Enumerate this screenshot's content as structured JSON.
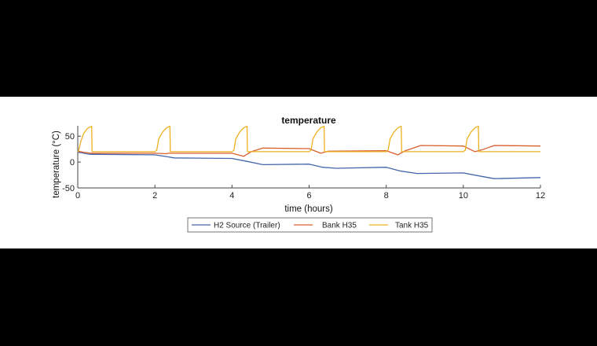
{
  "chart_data": {
    "type": "line",
    "title": "temperature",
    "xlabel": "time (hours)",
    "ylabel": "temperature (°C)",
    "xlim": [
      0,
      12
    ],
    "ylim": [
      -50,
      70
    ],
    "xticks": [
      0,
      2,
      4,
      6,
      8,
      10,
      12
    ],
    "yticks": [
      -50,
      0,
      50
    ],
    "grid": false,
    "legend_position": "bottom-center",
    "series": [
      {
        "name": "H2 Source (Trailer)",
        "color": "#4466aa",
        "points": [
          [
            0,
            19
          ],
          [
            0.1,
            18
          ],
          [
            0.3,
            15
          ],
          [
            2.0,
            14
          ],
          [
            2.35,
            10
          ],
          [
            2.5,
            8
          ],
          [
            4.0,
            7
          ],
          [
            4.35,
            2
          ],
          [
            4.8,
            -5
          ],
          [
            6.0,
            -4
          ],
          [
            6.35,
            -10
          ],
          [
            6.7,
            -12
          ],
          [
            8.0,
            -10
          ],
          [
            8.35,
            -17
          ],
          [
            8.8,
            -22
          ],
          [
            10.0,
            -21
          ],
          [
            10.35,
            -26
          ],
          [
            10.8,
            -32
          ],
          [
            12.0,
            -30
          ]
        ]
      },
      {
        "name": "Bank H35",
        "color": "#d95f2b",
        "points": [
          [
            0,
            21
          ],
          [
            0.15,
            19
          ],
          [
            0.35,
            17
          ],
          [
            2.0,
            17
          ],
          [
            2.3,
            16
          ],
          [
            2.35,
            17
          ],
          [
            4.0,
            17
          ],
          [
            4.3,
            11
          ],
          [
            4.5,
            20
          ],
          [
            4.8,
            27
          ],
          [
            6.0,
            26
          ],
          [
            6.3,
            17
          ],
          [
            6.5,
            21
          ],
          [
            8.0,
            22
          ],
          [
            8.3,
            14
          ],
          [
            8.5,
            22
          ],
          [
            8.9,
            32
          ],
          [
            10.0,
            31
          ],
          [
            10.3,
            20
          ],
          [
            10.5,
            24
          ],
          [
            10.8,
            32
          ],
          [
            12.0,
            31
          ]
        ]
      },
      {
        "name": "Tank H35",
        "color": "#edb120",
        "points": [
          [
            0,
            20
          ],
          [
            0.02,
            22
          ],
          [
            0.08,
            40
          ],
          [
            0.15,
            55
          ],
          [
            0.25,
            65
          ],
          [
            0.35,
            69
          ],
          [
            0.36,
            69
          ],
          [
            0.37,
            20
          ],
          [
            2.0,
            20
          ],
          [
            2.05,
            23
          ],
          [
            2.1,
            45
          ],
          [
            2.2,
            58
          ],
          [
            2.3,
            66
          ],
          [
            2.38,
            69
          ],
          [
            2.39,
            69
          ],
          [
            2.4,
            20
          ],
          [
            4.0,
            20
          ],
          [
            4.05,
            23
          ],
          [
            4.1,
            45
          ],
          [
            4.2,
            58
          ],
          [
            4.3,
            66
          ],
          [
            4.38,
            69
          ],
          [
            4.39,
            69
          ],
          [
            4.4,
            20
          ],
          [
            6.0,
            20
          ],
          [
            6.05,
            23
          ],
          [
            6.1,
            45
          ],
          [
            6.2,
            58
          ],
          [
            6.3,
            66
          ],
          [
            6.38,
            69
          ],
          [
            6.39,
            69
          ],
          [
            6.4,
            20
          ],
          [
            8.0,
            20
          ],
          [
            8.05,
            23
          ],
          [
            8.1,
            45
          ],
          [
            8.2,
            58
          ],
          [
            8.3,
            66
          ],
          [
            8.38,
            69
          ],
          [
            8.39,
            69
          ],
          [
            8.4,
            20
          ],
          [
            10.0,
            20
          ],
          [
            10.05,
            23
          ],
          [
            10.1,
            45
          ],
          [
            10.2,
            58
          ],
          [
            10.3,
            66
          ],
          [
            10.38,
            69
          ],
          [
            10.39,
            69
          ],
          [
            10.4,
            20
          ],
          [
            12.0,
            20
          ]
        ]
      }
    ]
  }
}
